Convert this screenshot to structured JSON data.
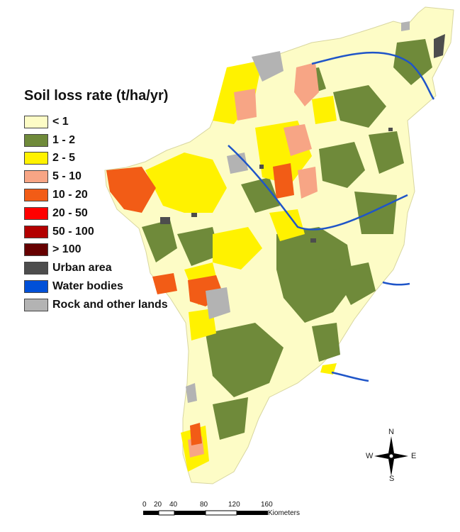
{
  "legend": {
    "title": "Soil loss rate (t/ha/yr)",
    "items": [
      {
        "label": "< 1",
        "color": "#fdfcc6"
      },
      {
        "label": "1 - 2",
        "color": "#6f8a3a"
      },
      {
        "label": "2 - 5",
        "color": "#fff200"
      },
      {
        "label": "5 - 10",
        "color": "#f7a585"
      },
      {
        "label": "10 - 20",
        "color": "#f25c16"
      },
      {
        "label": "20 - 50",
        "color": "#ff0000"
      },
      {
        "label": "50 - 100",
        "color": "#b30000"
      },
      {
        "label": "> 100",
        "color": "#660000"
      },
      {
        "label": "Urban area",
        "color": "#4d4d4d"
      },
      {
        "label": "Water bodies",
        "color": "#0050d8"
      },
      {
        "label": "Rock and other lands",
        "color": "#b3b3b3"
      }
    ]
  },
  "compass": {
    "north": "N",
    "south": "S",
    "east": "E",
    "west": "W"
  },
  "scale_bar": {
    "ticks": [
      "0",
      "20",
      "40",
      "80",
      "120",
      "160"
    ],
    "units": "Kiometers"
  },
  "colors": {
    "river": "#1f55c8"
  }
}
